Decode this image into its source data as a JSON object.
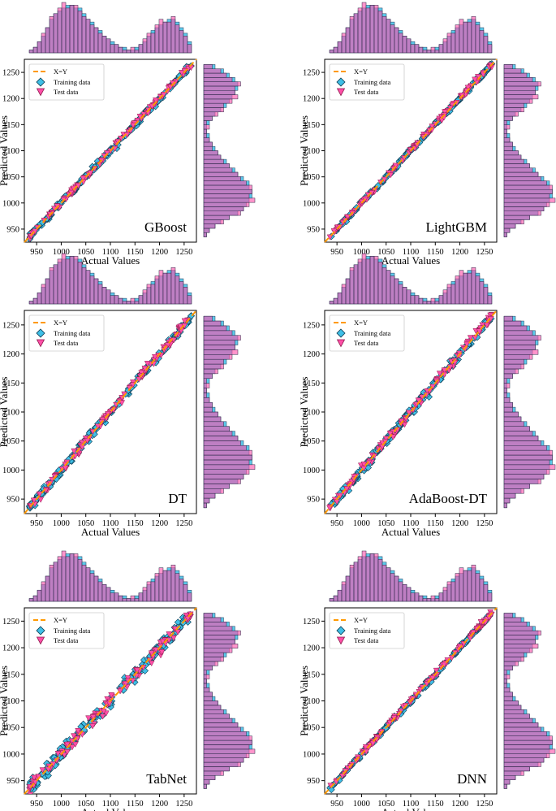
{
  "figure": {
    "x_axis_label": "Actual Values",
    "y_axis_label": "Predicted Values",
    "legend": [
      "X=Y",
      "Training data",
      "Test data"
    ]
  },
  "colors": {
    "diagonal": "#ff9900",
    "training": "#3fbfe6",
    "training_edge": "#0d3b52",
    "test": "#ff4fa8",
    "test_edge": "#8b1a4a",
    "hist_overlap": "#b05cb4"
  },
  "chart_data": [
    {
      "type": "scatter",
      "model": "GBoost",
      "title": "GBoost",
      "xlabel": "Actual Values",
      "ylabel": "Predicted Values",
      "xlim": [
        925,
        1275
      ],
      "ylim": [
        925,
        1275
      ],
      "xticks": [
        950,
        1000,
        1050,
        1100,
        1150,
        1200,
        1250
      ],
      "yticks": [
        950,
        1000,
        1050,
        1100,
        1150,
        1200,
        1250
      ],
      "legend": [
        "X=Y",
        "Training data",
        "Test data"
      ],
      "diagonal": [
        [
          925,
          925
        ],
        [
          1275,
          1275
        ]
      ],
      "scatter_range": [
        935,
        1265
      ],
      "prediction_noise": 4
    },
    {
      "type": "scatter",
      "model": "LightGBM",
      "title": "LightGBM",
      "xlabel": "Actual Values",
      "ylabel": "Predicted Values",
      "xlim": [
        925,
        1275
      ],
      "ylim": [
        925,
        1275
      ],
      "xticks": [
        950,
        1000,
        1050,
        1100,
        1150,
        1200,
        1250
      ],
      "yticks": [
        950,
        1000,
        1050,
        1100,
        1150,
        1200,
        1250
      ],
      "legend": [
        "X=Y",
        "Training data",
        "Test data"
      ],
      "diagonal": [
        [
          925,
          925
        ],
        [
          1275,
          1275
        ]
      ],
      "scatter_range": [
        935,
        1265
      ],
      "prediction_noise": 3
    },
    {
      "type": "scatter",
      "model": "DT",
      "title": "DT",
      "xlabel": "Actual Values",
      "ylabel": "Predicted Values",
      "xlim": [
        925,
        1275
      ],
      "ylim": [
        925,
        1275
      ],
      "xticks": [
        950,
        1000,
        1050,
        1100,
        1150,
        1200,
        1250
      ],
      "yticks": [
        950,
        1000,
        1050,
        1100,
        1150,
        1200,
        1250
      ],
      "legend": [
        "X=Y",
        "Training data",
        "Test data"
      ],
      "diagonal": [
        [
          925,
          925
        ],
        [
          1275,
          1275
        ]
      ],
      "scatter_range": [
        935,
        1265
      ],
      "prediction_noise": 5
    },
    {
      "type": "scatter",
      "model": "AdaBoost-DT",
      "title": "AdaBoost-DT",
      "xlabel": "Actual Values",
      "ylabel": "Predicted Values",
      "xlim": [
        925,
        1275
      ],
      "ylim": [
        925,
        1275
      ],
      "xticks": [
        950,
        1000,
        1050,
        1100,
        1150,
        1200,
        1250
      ],
      "yticks": [
        950,
        1000,
        1050,
        1100,
        1150,
        1200,
        1250
      ],
      "legend": [
        "X=Y",
        "Training data",
        "Test data"
      ],
      "diagonal": [
        [
          925,
          925
        ],
        [
          1275,
          1275
        ]
      ],
      "scatter_range": [
        935,
        1265
      ],
      "prediction_noise": 5
    },
    {
      "type": "scatter",
      "model": "TabNet",
      "title": "TabNet",
      "xlabel": "Actual Values",
      "ylabel": "Predicted Values",
      "xlim": [
        925,
        1275
      ],
      "ylim": [
        925,
        1275
      ],
      "xticks": [
        950,
        1000,
        1050,
        1100,
        1150,
        1200,
        1250
      ],
      "yticks": [
        950,
        1000,
        1050,
        1100,
        1150,
        1200,
        1250
      ],
      "legend": [
        "X=Y",
        "Training data",
        "Test data"
      ],
      "diagonal": [
        [
          925,
          925
        ],
        [
          1275,
          1275
        ]
      ],
      "scatter_range": [
        935,
        1265
      ],
      "prediction_noise": 9
    },
    {
      "type": "scatter",
      "model": "DNN",
      "title": "DNN",
      "xlabel": "Actual Values",
      "ylabel": "Predicted Values",
      "xlim": [
        925,
        1275
      ],
      "ylim": [
        925,
        1275
      ],
      "xticks": [
        950,
        1000,
        1050,
        1100,
        1150,
        1200,
        1250
      ],
      "yticks": [
        950,
        1000,
        1050,
        1100,
        1150,
        1200,
        1250
      ],
      "legend": [
        "X=Y",
        "Training data",
        "Test data"
      ],
      "diagonal": [
        [
          925,
          925
        ],
        [
          1275,
          1275
        ]
      ],
      "scatter_range": [
        935,
        1265
      ],
      "prediction_noise": 3
    }
  ],
  "marginal_histograms": {
    "bin_start": 935,
    "bin_width": 8.25,
    "train_counts": [
      1,
      2,
      4,
      6,
      9,
      12,
      14,
      15,
      16,
      17,
      17,
      16,
      16,
      14,
      12,
      11,
      9,
      8,
      6,
      5,
      4,
      3,
      2,
      2,
      1,
      1,
      2,
      3,
      4,
      6,
      8,
      9,
      10,
      11,
      12,
      12,
      11,
      9,
      7,
      4
    ],
    "test_counts": [
      1,
      2,
      4,
      7,
      9,
      13,
      14,
      16,
      18,
      16,
      17,
      17,
      15,
      13,
      12,
      10,
      9,
      7,
      6,
      5,
      3,
      3,
      2,
      1,
      1,
      2,
      1,
      3,
      5,
      7,
      7,
      10,
      12,
      11,
      11,
      13,
      10,
      8,
      6,
      3
    ]
  }
}
